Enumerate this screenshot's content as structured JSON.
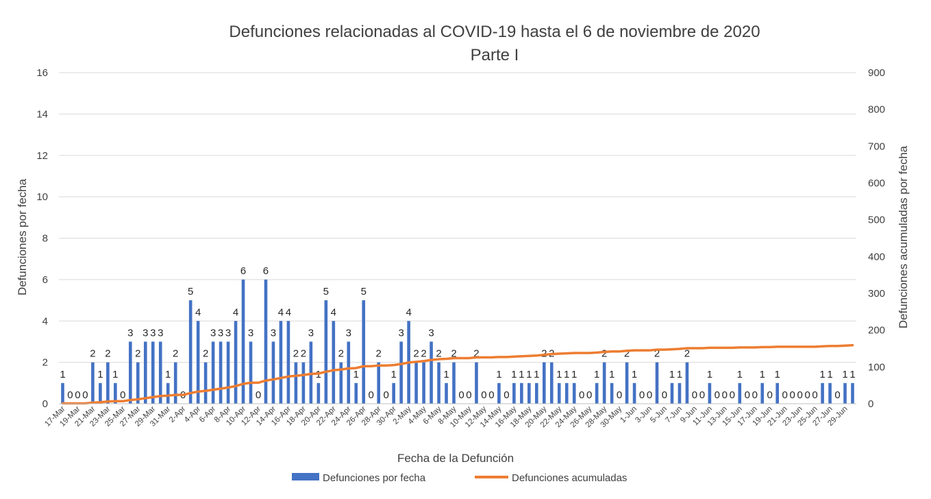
{
  "chart_data": {
    "type": "bar",
    "title": "Defunciones relacionadas al COVID-19 hasta el 6 de noviembre de 2020",
    "subtitle": "Parte I",
    "xlabel": "Fecha de la Defunción",
    "ylabel": "Defunciones por fecha",
    "y2label": "Defunciones acumuladas por fecha",
    "ylim": [
      0,
      16
    ],
    "y2lim": [
      0,
      900
    ],
    "yticks": [
      "0",
      "2",
      "4",
      "6",
      "8",
      "10",
      "12",
      "14",
      "16"
    ],
    "y2ticks": [
      "0",
      "100",
      "200",
      "300",
      "400",
      "500",
      "600",
      "700",
      "800",
      "900"
    ],
    "x_tick_labels": [
      "17-Mar",
      "19-Mar",
      "21-Mar",
      "23-Mar",
      "25-Mar",
      "27-Mar",
      "29-Mar",
      "31-Mar",
      "2-Apr",
      "4-Apr",
      "6-Apr",
      "8-Apr",
      "10-Apr",
      "12-Apr",
      "14-Apr",
      "16-Apr",
      "18-Apr",
      "20-Apr",
      "22-Apr",
      "24-Apr",
      "26-Apr",
      "28-Apr",
      "30-Apr",
      "2-May",
      "4-May",
      "6-May",
      "8-May",
      "10-May",
      "12-May",
      "14-May",
      "16-May",
      "18-May",
      "20-May",
      "22-May",
      "24-May",
      "26-May",
      "28-May",
      "30-May",
      "1-Jun",
      "3-Jun",
      "5-Jun",
      "7-Jun",
      "9-Jun",
      "11-Jun",
      "13-Jun",
      "15-Jun",
      "17-Jun",
      "19-Jun",
      "21-Jun",
      "23-Jun",
      "25-Jun",
      "27-Jun",
      "29-Jun"
    ],
    "dates_start": "17-Mar",
    "dates_end": "30-Jun",
    "series": [
      {
        "name": "Defunciones por fecha",
        "kind": "bar",
        "color": "#4472C4",
        "values": [
          1,
          0,
          0,
          0,
          2,
          1,
          2,
          1,
          0,
          3,
          2,
          3,
          3,
          3,
          1,
          2,
          0,
          5,
          4,
          2,
          3,
          3,
          3,
          4,
          6,
          3,
          0,
          6,
          3,
          4,
          4,
          2,
          2,
          3,
          1,
          5,
          4,
          2,
          3,
          1,
          5,
          0,
          2,
          0,
          1,
          3,
          4,
          2,
          2,
          3,
          2,
          1,
          2,
          0,
          0,
          2,
          0,
          0,
          1,
          0,
          1,
          1,
          1,
          1,
          2,
          2,
          1,
          1,
          1,
          0,
          0,
          1,
          2,
          1,
          0,
          2,
          1,
          0,
          0,
          2,
          0,
          1,
          1,
          2,
          0,
          0,
          1,
          0,
          0,
          0,
          1,
          0,
          0,
          1,
          0,
          1,
          0,
          0,
          0,
          0,
          0,
          1,
          1,
          0,
          1,
          1
        ]
      },
      {
        "name": "Defunciones acumuladas",
        "kind": "line",
        "color": "#ED7D31",
        "values": [
          1,
          1,
          1,
          1,
          3,
          4,
          6,
          7,
          7,
          10,
          12,
          15,
          18,
          21,
          22,
          24,
          24,
          29,
          33,
          35,
          38,
          41,
          44,
          48,
          54,
          57,
          57,
          63,
          66,
          70,
          74,
          76,
          78,
          81,
          82,
          87,
          91,
          93,
          96,
          97,
          102,
          102,
          104,
          104,
          105,
          108,
          112,
          114,
          116,
          119,
          121,
          122,
          124,
          124,
          124,
          126,
          126,
          126,
          127,
          127,
          128,
          129,
          130,
          131,
          133,
          135,
          136,
          137,
          138,
          138,
          138,
          139,
          141,
          142,
          142,
          144,
          145,
          145,
          145,
          147,
          147,
          148,
          149,
          151,
          151,
          151,
          152,
          152,
          152,
          152,
          153,
          153,
          153,
          154,
          154,
          155,
          155,
          155,
          155,
          155,
          155,
          156,
          157,
          157,
          158,
          159
        ]
      }
    ],
    "legend": [
      "Defunciones por fecha",
      "Defunciones acumuladas"
    ],
    "legend_position": "bottom",
    "grid": true
  }
}
